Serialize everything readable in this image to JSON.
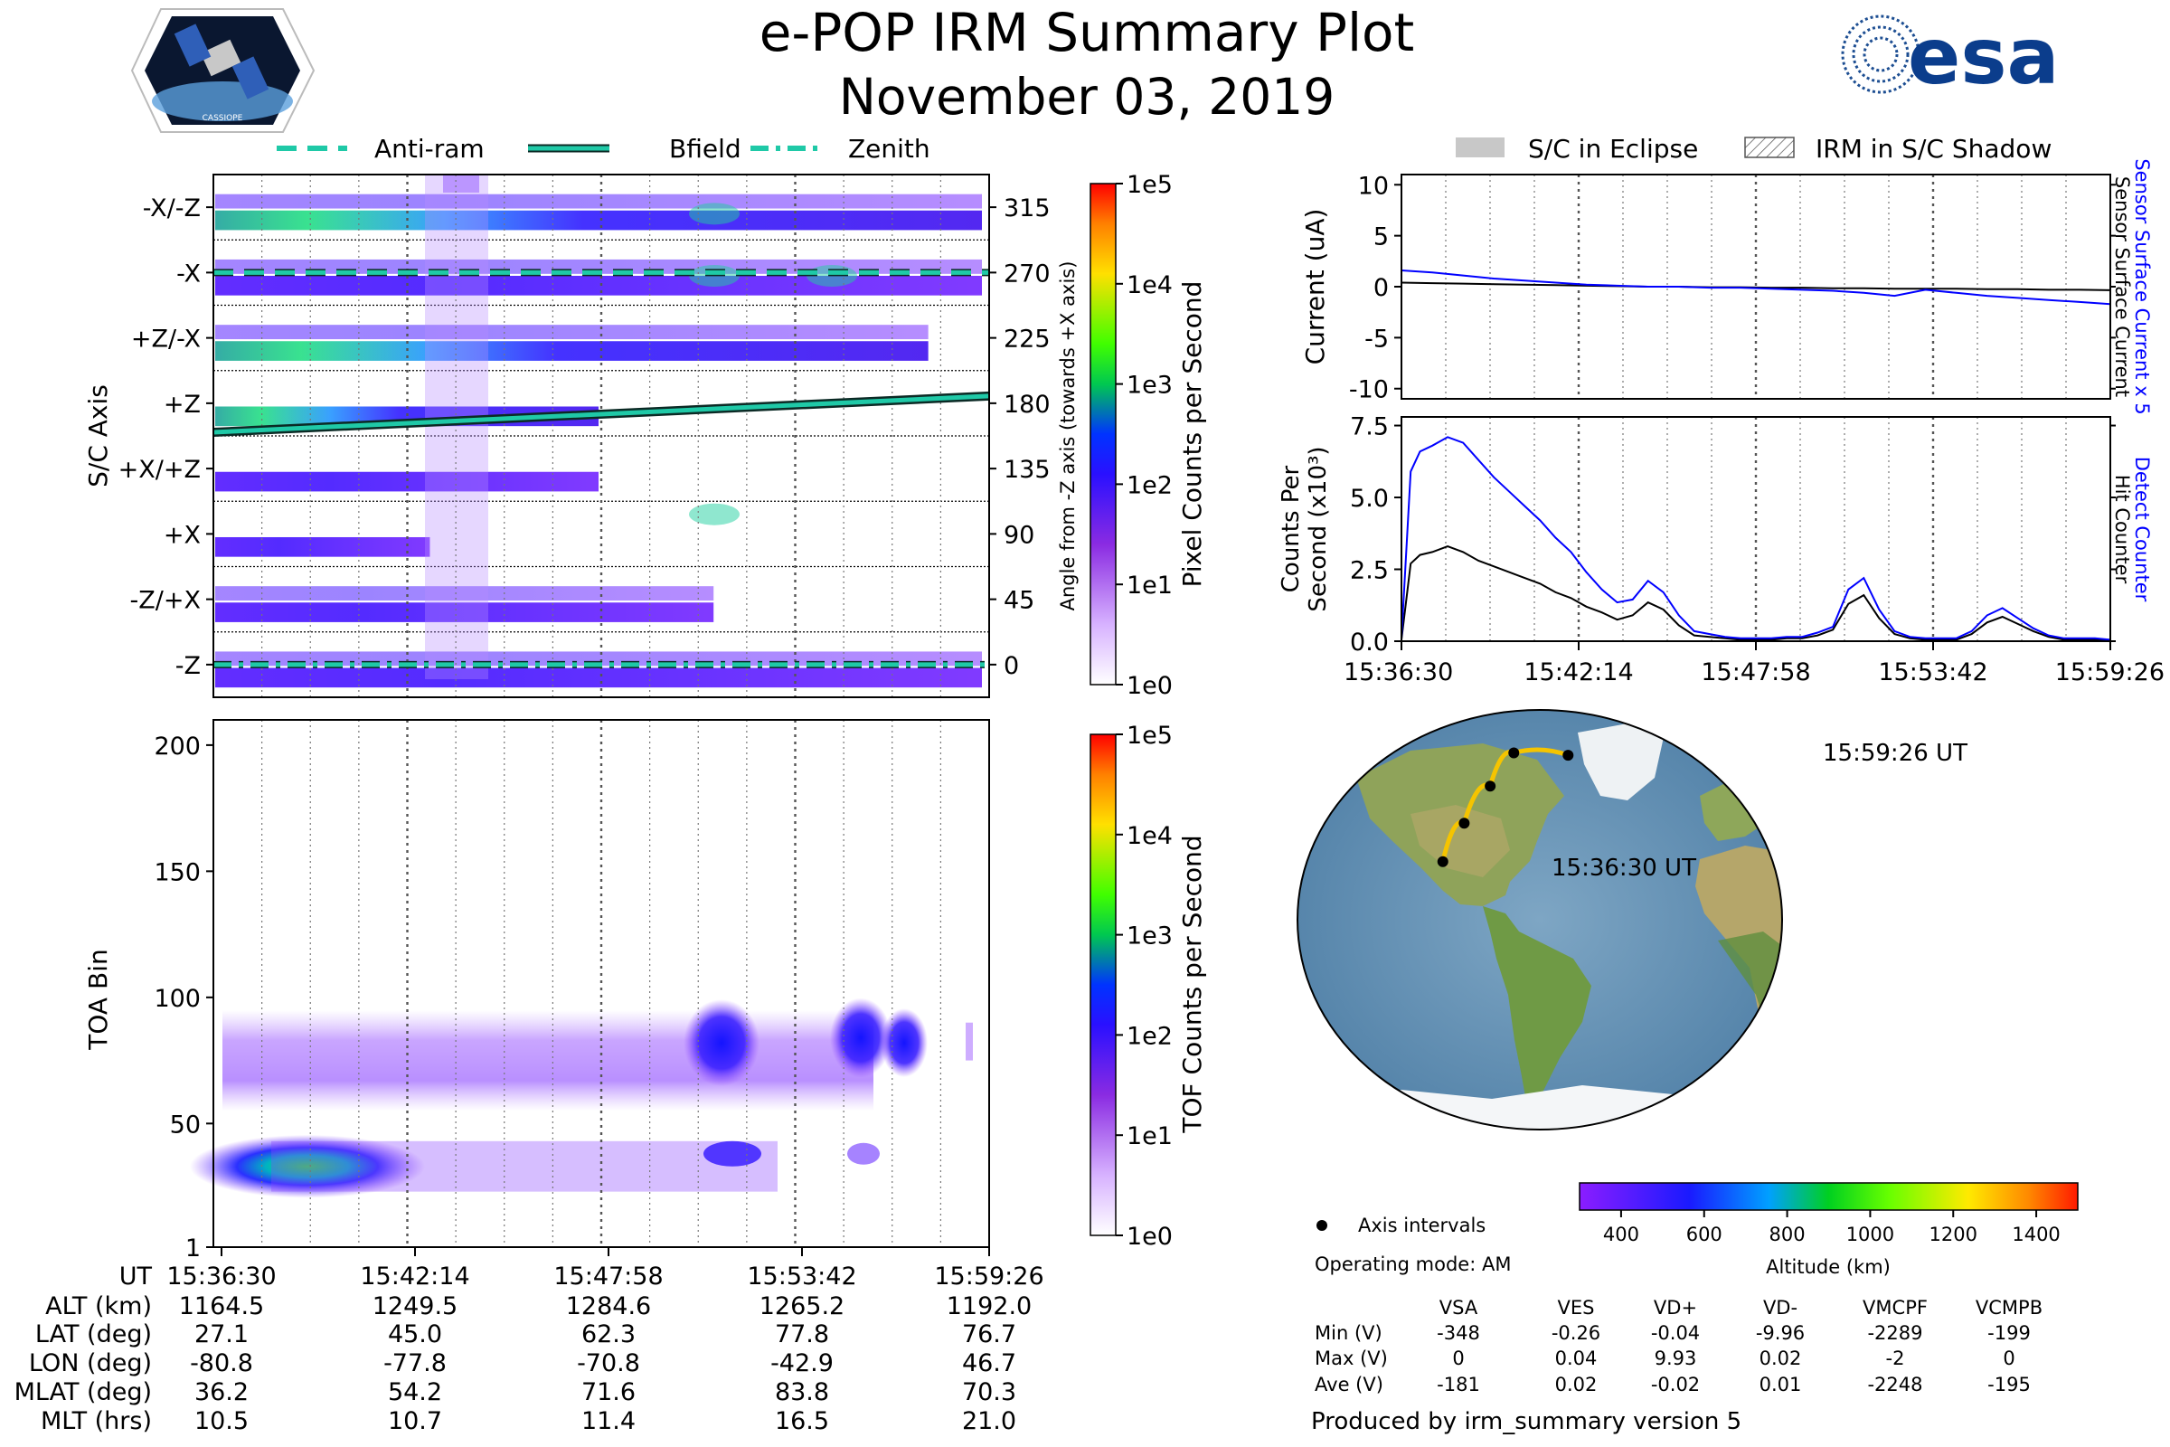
{
  "header": {
    "title": "e-POP IRM Summary Plot",
    "date": "November 03, 2019",
    "mission_logo_text": "CASSIOPE",
    "agency_logo_text": "esa"
  },
  "legend_left": {
    "items": [
      {
        "label": "Anti-ram",
        "style": "dashed"
      },
      {
        "label": "Bfield",
        "style": "solid"
      },
      {
        "label": "Zenith",
        "style": "dashdot"
      }
    ],
    "line_color": "#1fc9a7"
  },
  "legend_right": {
    "items": [
      {
        "label": "S/C in Eclipse",
        "style": "solid-gray"
      },
      {
        "label": "IRM in S/C Shadow",
        "style": "hatched"
      }
    ]
  },
  "chart_data": [
    {
      "id": "sc-axis-spectrogram",
      "type": "heatmap",
      "ylabel": "S/C Axis",
      "ylabel_right": "Angle from -Z axis (towards +X axis)",
      "rows": [
        "-X/-Z",
        "-X",
        "+Z/-X",
        "+Z",
        "+X/+Z",
        "+X",
        "-Z/+X",
        "-Z"
      ],
      "right_ticks": [
        "315",
        "270",
        "225",
        "180",
        "135",
        "90",
        "45",
        "0"
      ],
      "time_ticks": [
        "15:36:30",
        "15:42:14",
        "15:47:58",
        "15:53:42",
        "15:59:26"
      ],
      "overlays": {
        "anti_ram_angle_deg": 270,
        "zenith_angle_deg": 0,
        "bfield_angle_deg": {
          "start": 160,
          "end": 185
        }
      },
      "colorbar": {
        "label": "Pixel Counts per Second",
        "ticks": [
          "1e5",
          "1e4",
          "1e3",
          "1e2",
          "1e1",
          "1e0"
        ],
        "scale": "log"
      }
    },
    {
      "id": "toa-spectrogram",
      "type": "heatmap",
      "ylabel": "TOA Bin",
      "yticks": [
        "200",
        "150",
        "100",
        "50",
        "1"
      ],
      "ylim": [
        1,
        210
      ],
      "time_ticks": [
        "15:36:30",
        "15:42:14",
        "15:47:58",
        "15:53:42",
        "15:59:26"
      ],
      "colorbar": {
        "label": "TOF Counts per Second",
        "ticks": [
          "1e5",
          "1e4",
          "1e3",
          "1e2",
          "1e1",
          "1e0"
        ],
        "scale": "log"
      }
    },
    {
      "id": "current-plot",
      "type": "line",
      "ylabel": "Current (uA)",
      "ylabel_right_1": "Sensor Surface Current x 5",
      "ylabel_right_2": "Sensor Surface Current",
      "yticks": [
        "10",
        "5",
        "0",
        "-5",
        "-10"
      ],
      "ylim": [
        -11,
        11
      ],
      "x": [
        0,
        1,
        2,
        3,
        4,
        5,
        6,
        7,
        8,
        9,
        10,
        11,
        12,
        13,
        14,
        15,
        16,
        17,
        18,
        19,
        20,
        21,
        22,
        23
      ],
      "series": [
        {
          "name": "Sensor Surface Current x 5",
          "color": "#0000ff",
          "values": [
            1.6,
            1.4,
            1.1,
            0.8,
            0.6,
            0.4,
            0.2,
            0.1,
            0.0,
            0.0,
            -0.1,
            -0.1,
            -0.2,
            -0.3,
            -0.4,
            -0.6,
            -0.9,
            -0.3,
            -0.6,
            -0.9,
            -1.1,
            -1.3,
            -1.5,
            -1.7
          ]
        },
        {
          "name": "Sensor Surface Current",
          "color": "#000000",
          "values": [
            0.4,
            0.35,
            0.3,
            0.25,
            0.2,
            0.15,
            0.1,
            0.05,
            0.0,
            0.0,
            -0.05,
            -0.05,
            -0.1,
            -0.1,
            -0.15,
            -0.15,
            -0.2,
            -0.2,
            -0.2,
            -0.25,
            -0.25,
            -0.3,
            -0.3,
            -0.35
          ]
        }
      ]
    },
    {
      "id": "counts-plot",
      "type": "line",
      "ylabel": "Counts Per Second (x10³)",
      "ylabel_right_1": "Detect Counter",
      "ylabel_right_2": "Hit Counter",
      "yticks": [
        "7.5",
        "5.0",
        "2.5",
        "0.0"
      ],
      "ylim": [
        0,
        7.8
      ],
      "xticks": [
        "15:36:30",
        "15:42:14",
        "15:47:58",
        "15:53:42",
        "15:59:26"
      ],
      "x": [
        0,
        0.3,
        0.6,
        1,
        1.5,
        2,
        2.5,
        3,
        3.5,
        4,
        4.5,
        5,
        5.5,
        6,
        6.5,
        7,
        7.5,
        8,
        8.5,
        9,
        9.5,
        10,
        10.5,
        11,
        11.5,
        12,
        12.5,
        13,
        13.5,
        14,
        14.5,
        15,
        15.5,
        16,
        16.5,
        17,
        17.5,
        18,
        18.5,
        19,
        19.5,
        20,
        20.5,
        21,
        21.5,
        22,
        22.5,
        23
      ],
      "series": [
        {
          "name": "Detect Counter",
          "color": "#0000ff",
          "values": [
            0.1,
            5.9,
            6.6,
            6.8,
            7.1,
            6.9,
            6.3,
            5.7,
            5.2,
            4.7,
            4.2,
            3.6,
            3.1,
            2.4,
            1.8,
            1.35,
            1.45,
            2.1,
            1.7,
            0.9,
            0.35,
            0.25,
            0.15,
            0.1,
            0.1,
            0.1,
            0.15,
            0.15,
            0.3,
            0.5,
            1.8,
            2.2,
            1.1,
            0.35,
            0.15,
            0.1,
            0.1,
            0.1,
            0.35,
            0.9,
            1.15,
            0.8,
            0.45,
            0.2,
            0.1,
            0.1,
            0.1,
            0.05
          ]
        },
        {
          "name": "Hit Counter",
          "color": "#000000",
          "values": [
            0.05,
            2.7,
            3.0,
            3.1,
            3.3,
            3.1,
            2.8,
            2.6,
            2.4,
            2.2,
            2.0,
            1.7,
            1.5,
            1.2,
            1.0,
            0.75,
            0.9,
            1.35,
            1.1,
            0.55,
            0.2,
            0.15,
            0.1,
            0.05,
            0.05,
            0.05,
            0.1,
            0.1,
            0.2,
            0.4,
            1.3,
            1.6,
            0.8,
            0.25,
            0.1,
            0.05,
            0.05,
            0.05,
            0.25,
            0.65,
            0.85,
            0.6,
            0.35,
            0.15,
            0.05,
            0.05,
            0.05,
            0.0
          ]
        }
      ]
    }
  ],
  "bottom_table": {
    "row_labels": [
      "UT",
      "ALT (km)",
      "LAT (deg)",
      "LON (deg)",
      "MLAT (deg)",
      "MLT (hrs)"
    ],
    "columns": [
      [
        "15:36:30",
        "1164.5",
        "27.1",
        "-80.8",
        "36.2",
        "10.5"
      ],
      [
        "15:42:14",
        "1249.5",
        "45.0",
        "-77.8",
        "54.2",
        "10.7"
      ],
      [
        "15:47:58",
        "1284.6",
        "62.3",
        "-70.8",
        "71.6",
        "11.4"
      ],
      [
        "15:53:42",
        "1265.2",
        "77.8",
        "-42.9",
        "83.8",
        "16.5"
      ],
      [
        "15:59:26",
        "1192.0",
        "76.7",
        "46.7",
        "70.3",
        "21.0"
      ]
    ]
  },
  "map": {
    "start_label": "15:36:30 UT",
    "end_label": "15:59:26 UT",
    "track_color": "#f5c400",
    "track_points": [
      {
        "lon": -80.8,
        "lat": 27.1
      },
      {
        "lon": -77.8,
        "lat": 45.0
      },
      {
        "lon": -70.8,
        "lat": 62.3
      },
      {
        "lon": -42.9,
        "lat": 77.8
      },
      {
        "lon": 46.7,
        "lat": 76.7
      }
    ]
  },
  "altitude_colorbar": {
    "label": "Altitude (km)",
    "ticks": [
      "400",
      "600",
      "800",
      "1000",
      "1200",
      "1400"
    ],
    "range": [
      300,
      1500
    ]
  },
  "info": {
    "axis_intervals": "Axis intervals",
    "operating_mode": "Operating mode: AM",
    "produced_by": "Produced by irm_summary version 5"
  },
  "voltage_table": {
    "headers": [
      "VSA",
      "VES",
      "VD+",
      "VD-",
      "VMCPF",
      "VCMPB"
    ],
    "rows": [
      {
        "label": "Min (V)",
        "values": [
          "-348",
          "-0.26",
          "-0.04",
          "-9.96",
          "-2289",
          "-199"
        ]
      },
      {
        "label": "Max (V)",
        "values": [
          "0",
          "0.04",
          "9.93",
          "0.02",
          "-2",
          "0"
        ]
      },
      {
        "label": "Ave (V)",
        "values": [
          "-181",
          "0.02",
          "-0.02",
          "0.01",
          "-2248",
          "-195"
        ]
      }
    ]
  }
}
